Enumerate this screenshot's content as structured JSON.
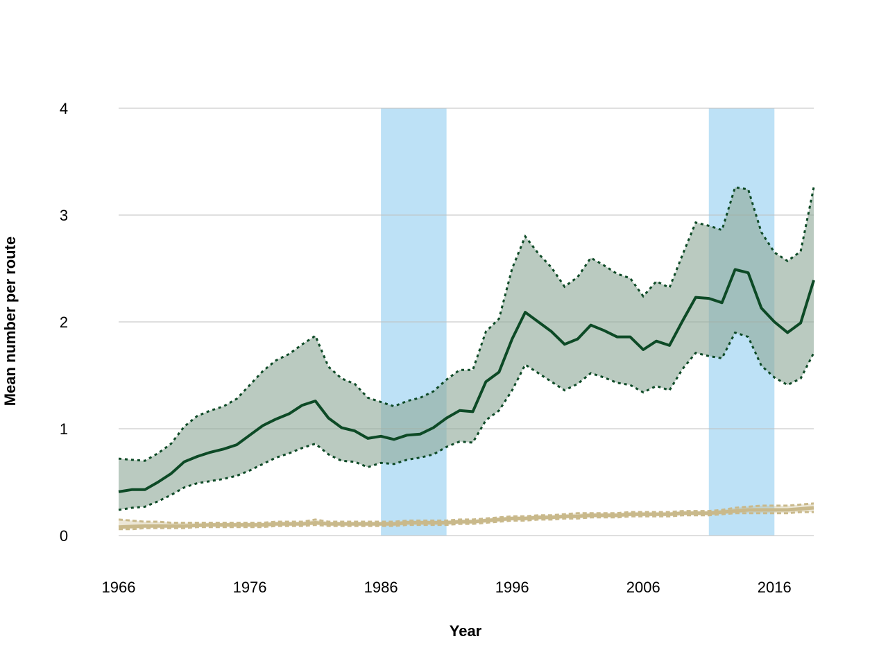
{
  "chart_data": {
    "type": "line",
    "xlabel": "Year",
    "ylabel": "Mean number per route",
    "xlim": [
      1966,
      2019
    ],
    "ylim": [
      0,
      4
    ],
    "x_ticks": [
      1966,
      1976,
      1986,
      1996,
      2006,
      2016
    ],
    "y_ticks": [
      0,
      1,
      2,
      3,
      4
    ],
    "grid": "horizontal",
    "legend": "none",
    "highlight_bands": [
      [
        1986,
        1991
      ],
      [
        2011,
        2016
      ]
    ],
    "colors": {
      "band": "#bde1f6",
      "series1_line": "#0d4a26",
      "series1_fill": "#8fa99a",
      "series2_line": "#c9b98b",
      "grid": "#bfbfbf"
    },
    "x": [
      1966,
      1967,
      1968,
      1969,
      1970,
      1971,
      1972,
      1973,
      1974,
      1975,
      1976,
      1977,
      1978,
      1979,
      1980,
      1981,
      1982,
      1983,
      1984,
      1985,
      1986,
      1987,
      1988,
      1989,
      1990,
      1991,
      1992,
      1993,
      1994,
      1995,
      1996,
      1997,
      1998,
      1999,
      2000,
      2001,
      2002,
      2003,
      2004,
      2005,
      2006,
      2007,
      2008,
      2009,
      2010,
      2011,
      2012,
      2013,
      2014,
      2015,
      2016,
      2017,
      2018,
      2019
    ],
    "series": [
      {
        "values": [
          0.41,
          0.43,
          0.43,
          0.5,
          0.58,
          0.69,
          0.74,
          0.78,
          0.81,
          0.85,
          0.94,
          1.03,
          1.09,
          1.14,
          1.22,
          1.26,
          1.1,
          1.01,
          0.98,
          0.91,
          0.93,
          0.9,
          0.94,
          0.95,
          1.01,
          1.1,
          1.17,
          1.16,
          1.44,
          1.53,
          1.84,
          2.09,
          2.0,
          1.91,
          1.79,
          1.84,
          1.97,
          1.92,
          1.86,
          1.86,
          1.74,
          1.82,
          1.78,
          2.01,
          2.23,
          2.22,
          2.18,
          2.49,
          2.46,
          2.13,
          2.0,
          1.9,
          1.99,
          2.39
        ],
        "upper": [
          0.72,
          0.71,
          0.7,
          0.77,
          0.86,
          1.02,
          1.12,
          1.17,
          1.21,
          1.28,
          1.41,
          1.54,
          1.64,
          1.7,
          1.79,
          1.87,
          1.58,
          1.47,
          1.42,
          1.29,
          1.25,
          1.21,
          1.26,
          1.29,
          1.35,
          1.46,
          1.55,
          1.55,
          1.91,
          2.03,
          2.5,
          2.8,
          2.64,
          2.51,
          2.33,
          2.42,
          2.6,
          2.53,
          2.45,
          2.41,
          2.24,
          2.38,
          2.32,
          2.63,
          2.93,
          2.9,
          2.86,
          3.26,
          3.24,
          2.84,
          2.65,
          2.57,
          2.66,
          3.26
        ],
        "lower": [
          0.24,
          0.26,
          0.27,
          0.32,
          0.38,
          0.45,
          0.49,
          0.51,
          0.53,
          0.56,
          0.61,
          0.67,
          0.73,
          0.77,
          0.82,
          0.86,
          0.76,
          0.7,
          0.69,
          0.64,
          0.68,
          0.67,
          0.71,
          0.73,
          0.76,
          0.83,
          0.88,
          0.87,
          1.08,
          1.17,
          1.36,
          1.6,
          1.52,
          1.44,
          1.36,
          1.42,
          1.52,
          1.48,
          1.43,
          1.41,
          1.34,
          1.4,
          1.36,
          1.56,
          1.71,
          1.68,
          1.66,
          1.9,
          1.86,
          1.59,
          1.48,
          1.41,
          1.47,
          1.71
        ]
      },
      {
        "values": [
          0.08,
          0.085,
          0.09,
          0.09,
          0.09,
          0.09,
          0.095,
          0.1,
          0.1,
          0.1,
          0.1,
          0.1,
          0.11,
          0.11,
          0.11,
          0.12,
          0.11,
          0.11,
          0.11,
          0.11,
          0.11,
          0.11,
          0.12,
          0.12,
          0.12,
          0.12,
          0.13,
          0.13,
          0.14,
          0.15,
          0.16,
          0.16,
          0.17,
          0.17,
          0.18,
          0.18,
          0.19,
          0.19,
          0.19,
          0.2,
          0.2,
          0.2,
          0.2,
          0.21,
          0.21,
          0.21,
          0.22,
          0.23,
          0.24,
          0.24,
          0.24,
          0.24,
          0.25,
          0.26
        ],
        "upper": [
          0.15,
          0.14,
          0.13,
          0.13,
          0.12,
          0.12,
          0.12,
          0.12,
          0.12,
          0.12,
          0.12,
          0.12,
          0.13,
          0.13,
          0.13,
          0.15,
          0.13,
          0.13,
          0.13,
          0.13,
          0.13,
          0.13,
          0.14,
          0.14,
          0.14,
          0.14,
          0.15,
          0.15,
          0.16,
          0.17,
          0.18,
          0.18,
          0.19,
          0.19,
          0.2,
          0.21,
          0.21,
          0.21,
          0.21,
          0.22,
          0.22,
          0.22,
          0.22,
          0.23,
          0.23,
          0.23,
          0.24,
          0.26,
          0.27,
          0.28,
          0.28,
          0.28,
          0.29,
          0.3
        ],
        "lower": [
          0.06,
          0.06,
          0.07,
          0.07,
          0.07,
          0.07,
          0.08,
          0.08,
          0.08,
          0.08,
          0.08,
          0.08,
          0.09,
          0.09,
          0.09,
          0.1,
          0.09,
          0.09,
          0.09,
          0.09,
          0.09,
          0.09,
          0.1,
          0.1,
          0.1,
          0.1,
          0.11,
          0.11,
          0.12,
          0.13,
          0.14,
          0.14,
          0.15,
          0.15,
          0.16,
          0.16,
          0.17,
          0.17,
          0.17,
          0.18,
          0.18,
          0.18,
          0.18,
          0.19,
          0.19,
          0.19,
          0.2,
          0.21,
          0.21,
          0.21,
          0.21,
          0.21,
          0.22,
          0.22
        ]
      }
    ]
  }
}
